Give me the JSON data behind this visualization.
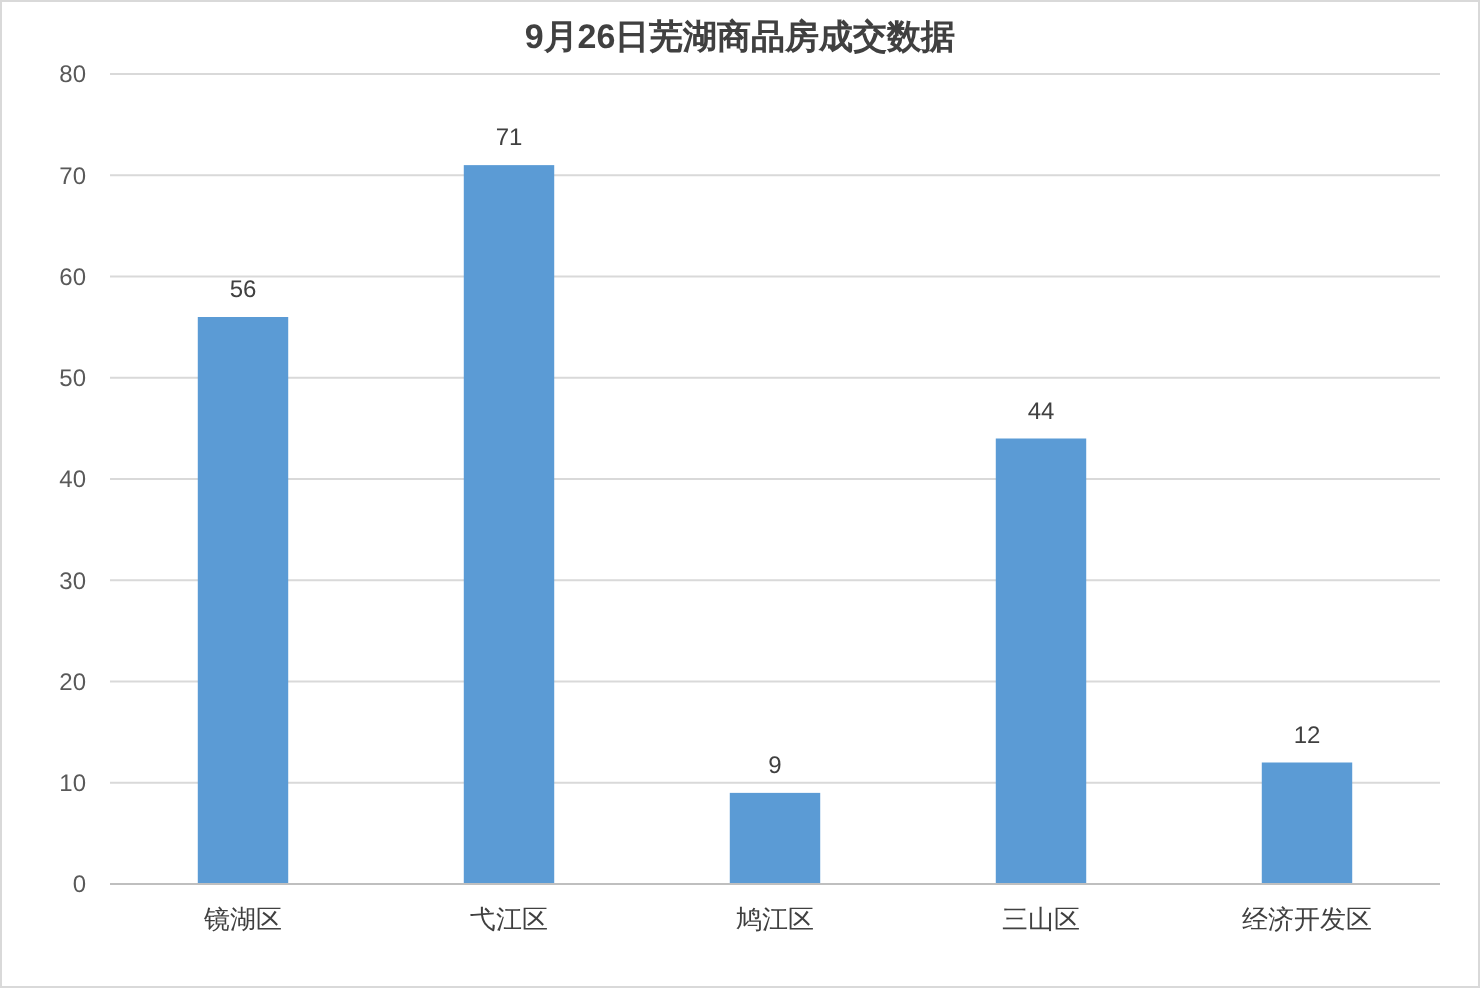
{
  "chart_data": {
    "type": "bar",
    "title": "9月26日芜湖商品房成交数据",
    "categories": [
      "镜湖区",
      "弋江区",
      "鸠江区",
      "三山区",
      "经济开发区"
    ],
    "values": [
      56,
      71,
      9,
      44,
      12
    ],
    "color": "#5b9bd5",
    "ylim": [
      0,
      80
    ],
    "yticks": [
      0,
      10,
      20,
      30,
      40,
      50,
      60,
      70,
      80
    ],
    "grid": "y",
    "data_labels": true
  }
}
